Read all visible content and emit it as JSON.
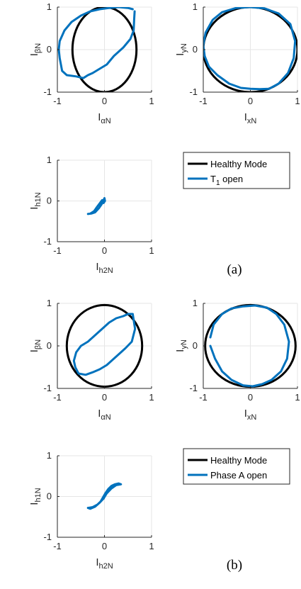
{
  "colors": {
    "healthy": "#000000",
    "fault": "#0072BD",
    "grid": "#e6e6e6",
    "axis": "#262626"
  },
  "figures": [
    {
      "panel_label": "(a)",
      "legend": [
        "Healthy Mode",
        "T1 open"
      ],
      "legend_fault": {
        "base": "T",
        "sub": "1",
        "rest": " open"
      }
    },
    {
      "panel_label": "(b)",
      "legend": [
        "Healthy Mode",
        "Phase A open"
      ],
      "legend_fault": {
        "base": "Phase A open",
        "sub": "",
        "rest": ""
      }
    }
  ],
  "chart_data": [
    {
      "type": "line",
      "figure": "(a)",
      "xlabel": {
        "base": "I",
        "sub": "αN"
      },
      "ylabel": {
        "base": "I",
        "sub": "βN"
      },
      "xlim": [
        -1,
        1
      ],
      "ylim": [
        -1,
        1
      ],
      "xticks": [
        -1,
        0,
        1
      ],
      "yticks": [
        -1,
        0,
        1
      ],
      "grid": true,
      "series": [
        {
          "name": "Healthy Mode",
          "shape": "ellipse",
          "rx": 0.68,
          "ry": 1.0
        },
        {
          "name": "T1 open",
          "x": [
            0.6,
            0.5,
            0.3,
            0.1,
            -0.1,
            -0.3,
            -0.5,
            -0.7,
            -0.85,
            -0.95,
            -0.97,
            -0.95,
            -0.9,
            -0.8,
            -0.6,
            -0.45,
            -0.35,
            -0.25,
            -0.1,
            0.05,
            0.2,
            0.4,
            0.55,
            0.62,
            0.63,
            0.64
          ],
          "y": [
            0.95,
            0.98,
            1.0,
            0.98,
            0.95,
            0.9,
            0.8,
            0.65,
            0.45,
            0.2,
            0.0,
            -0.2,
            -0.5,
            -0.6,
            -0.63,
            -0.67,
            -0.6,
            -0.55,
            -0.45,
            -0.35,
            -0.15,
            0.05,
            0.25,
            0.45,
            0.7,
            0.9
          ]
        }
      ]
    },
    {
      "type": "line",
      "figure": "(a)",
      "xlabel": {
        "base": "I",
        "sub": "xN"
      },
      "ylabel": {
        "base": "I",
        "sub": "yN"
      },
      "xlim": [
        -1,
        1
      ],
      "ylim": [
        -1,
        1
      ],
      "xticks": [
        -1,
        0,
        1
      ],
      "yticks": [
        -1,
        0,
        1
      ],
      "grid": true,
      "series": [
        {
          "name": "Healthy Mode",
          "shape": "ellipse",
          "rx": 1.0,
          "ry": 1.0
        },
        {
          "name": "T1 open",
          "x": [
            -1.0,
            -0.95,
            -0.8,
            -0.6,
            -0.3,
            0.0,
            0.3,
            0.6,
            0.85,
            0.95,
            0.92,
            0.8,
            0.6,
            0.4,
            0.2,
            0.0,
            -0.2,
            -0.45,
            -0.7,
            -0.88,
            -0.97,
            -1.0
          ],
          "y": [
            0.1,
            0.4,
            0.7,
            0.88,
            0.98,
            1.0,
            0.97,
            0.85,
            0.6,
            0.2,
            -0.2,
            -0.55,
            -0.8,
            -0.92,
            -0.93,
            -0.92,
            -0.9,
            -0.8,
            -0.6,
            -0.4,
            -0.15,
            0.1
          ]
        }
      ]
    },
    {
      "type": "line",
      "figure": "(a)",
      "xlabel": {
        "base": "I",
        "sub": "h2N"
      },
      "ylabel": {
        "base": "I",
        "sub": "h1N"
      },
      "xlim": [
        -1,
        1
      ],
      "ylim": [
        -1,
        1
      ],
      "xticks": [
        -1,
        0,
        1
      ],
      "yticks": [
        -1,
        0,
        1
      ],
      "grid": true,
      "series": [
        {
          "name": "Healthy Mode",
          "x": [
            0,
            0
          ],
          "y": [
            0,
            0
          ]
        },
        {
          "name": "T1 open",
          "x": [
            -0.35,
            -0.28,
            -0.2,
            -0.12,
            -0.06,
            -0.02,
            0.0,
            0.01,
            -0.02,
            -0.05,
            -0.1,
            -0.16,
            -0.22,
            -0.3
          ],
          "y": [
            -0.32,
            -0.31,
            -0.28,
            -0.18,
            -0.08,
            0.02,
            0.07,
            0.0,
            -0.05,
            0.02,
            -0.06,
            -0.15,
            -0.25,
            -0.31
          ]
        }
      ]
    },
    {
      "type": "line",
      "figure": "(b)",
      "xlabel": {
        "base": "I",
        "sub": "αN"
      },
      "ylabel": {
        "base": "I",
        "sub": "βN"
      },
      "xlim": [
        -1,
        1
      ],
      "ylim": [
        -1,
        1
      ],
      "xticks": [
        -1,
        0,
        1
      ],
      "yticks": [
        -1,
        0,
        1
      ],
      "grid": true,
      "series": [
        {
          "name": "Healthy Mode",
          "shape": "ellipse",
          "rx": 0.8,
          "ry": 0.96
        },
        {
          "name": "Phase A open",
          "x": [
            0.6,
            0.65,
            0.58,
            0.45,
            0.35,
            0.2,
            0.05,
            -0.1,
            -0.25,
            -0.4,
            -0.55,
            -0.62,
            -0.65,
            -0.6,
            -0.5,
            -0.35,
            -0.2,
            -0.05,
            0.1,
            0.25,
            0.4,
            0.5,
            0.6
          ],
          "y": [
            0.75,
            0.4,
            0.1,
            -0.05,
            -0.15,
            -0.3,
            -0.45,
            -0.55,
            -0.62,
            -0.68,
            -0.65,
            -0.5,
            -0.35,
            -0.15,
            0.0,
            0.1,
            0.25,
            0.4,
            0.55,
            0.65,
            0.7,
            0.75,
            0.75
          ]
        }
      ]
    },
    {
      "type": "line",
      "figure": "(b)",
      "xlabel": {
        "base": "I",
        "sub": "xN"
      },
      "ylabel": {
        "base": "I",
        "sub": "yN"
      },
      "xlim": [
        -1,
        1
      ],
      "ylim": [
        -1,
        1
      ],
      "xticks": [
        -1,
        0,
        1
      ],
      "yticks": [
        -1,
        0,
        1
      ],
      "grid": true,
      "series": [
        {
          "name": "Healthy Mode",
          "shape": "ellipse",
          "rx": 0.96,
          "ry": 0.96
        },
        {
          "name": "Phase A open",
          "x": [
            -0.85,
            -0.78,
            -0.6,
            -0.4,
            -0.15,
            0.1,
            0.35,
            0.55,
            0.72,
            0.82,
            0.78,
            0.65,
            0.45,
            0.25,
            0.05,
            -0.15,
            -0.4,
            -0.6,
            -0.75,
            -0.85
          ],
          "y": [
            0.2,
            0.5,
            0.75,
            0.88,
            0.93,
            0.95,
            0.9,
            0.75,
            0.5,
            0.1,
            -0.3,
            -0.6,
            -0.8,
            -0.9,
            -0.95,
            -0.93,
            -0.8,
            -0.6,
            -0.3,
            0.0
          ]
        }
      ]
    },
    {
      "type": "line",
      "figure": "(b)",
      "xlabel": {
        "base": "I",
        "sub": "h2N"
      },
      "ylabel": {
        "base": "I",
        "sub": "h1N"
      },
      "xlim": [
        -1,
        1
      ],
      "ylim": [
        -1,
        1
      ],
      "xticks": [
        -1,
        0,
        1
      ],
      "yticks": [
        -1,
        0,
        1
      ],
      "grid": true,
      "series": [
        {
          "name": "Healthy Mode",
          "x": [
            -0.02,
            0.02
          ],
          "y": [
            -0.05,
            0.05
          ]
        },
        {
          "name": "Phase A open",
          "x": [
            -0.35,
            -0.25,
            -0.15,
            -0.08,
            -0.03,
            0.02,
            0.08,
            0.15,
            0.22,
            0.3,
            0.35,
            0.25,
            0.15,
            0.05,
            -0.02,
            -0.1,
            -0.2,
            -0.3,
            -0.35
          ],
          "y": [
            -0.28,
            -0.26,
            -0.2,
            -0.12,
            -0.02,
            0.08,
            0.18,
            0.26,
            0.3,
            0.32,
            0.3,
            0.28,
            0.2,
            0.08,
            -0.05,
            -0.15,
            -0.25,
            -0.3,
            -0.28
          ]
        }
      ]
    }
  ]
}
